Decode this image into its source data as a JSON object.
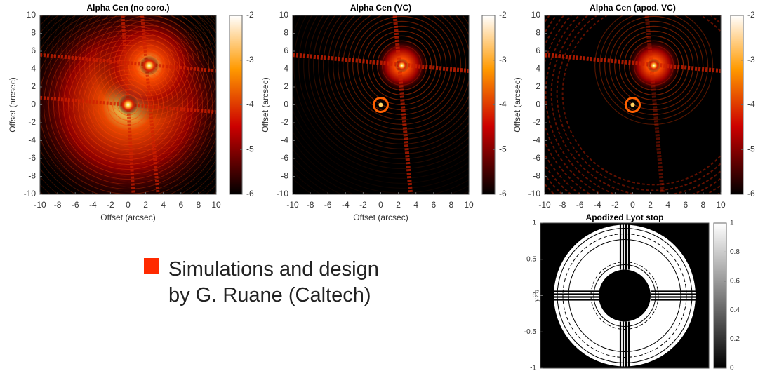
{
  "panels": [
    {
      "title": "Alpha Cen (no coro.)",
      "xlabel": "Offset (arcsec)",
      "ylabel": "Offset (arcsec)",
      "xlim": [
        -10,
        10
      ],
      "ylim": [
        -10,
        10
      ],
      "xticks": [
        -10,
        -8,
        -6,
        -4,
        -2,
        0,
        2,
        4,
        6,
        8,
        10
      ],
      "yticks": [
        -10,
        -8,
        -6,
        -4,
        -2,
        0,
        2,
        4,
        6,
        8,
        10
      ],
      "clim": [
        -6,
        -2
      ],
      "cticks": [
        -2,
        -3,
        -4,
        -5,
        -6
      ]
    },
    {
      "title": "Alpha Cen (VC)",
      "xlabel": "Offset (arcsec)",
      "ylabel": "Offset (arcsec)",
      "xlim": [
        -10,
        10
      ],
      "ylim": [
        -10,
        10
      ],
      "xticks": [
        -10,
        -8,
        -6,
        -4,
        -2,
        0,
        2,
        4,
        6,
        8,
        10
      ],
      "yticks": [
        -10,
        -8,
        -6,
        -4,
        -2,
        0,
        2,
        4,
        6,
        8,
        10
      ],
      "clim": [
        -6,
        -2
      ],
      "cticks": [
        -2,
        -3,
        -4,
        -5,
        -6
      ]
    },
    {
      "title": "Alpha Cen (apod. VC)",
      "ylabel": "Offset (arcsec)",
      "xlim": [
        -10,
        10
      ],
      "ylim": [
        -10,
        10
      ],
      "xticks": [
        -10,
        -8,
        -6,
        -4,
        -2,
        0,
        2,
        4,
        6,
        8,
        10
      ],
      "yticks": [
        -10,
        -8,
        -6,
        -4,
        -2,
        0,
        2,
        4,
        6,
        8,
        10
      ],
      "clim": [
        -6,
        -2
      ],
      "cticks": [
        -2,
        -3,
        -4,
        -5,
        -6
      ]
    }
  ],
  "lyot": {
    "title": "Apodized Lyot stop",
    "ylabel": "y / a",
    "ylim": [
      -1,
      1
    ],
    "yticks": [
      1,
      0.5,
      0,
      -0.5,
      -1
    ],
    "clim": [
      0,
      1
    ],
    "cticks": [
      1,
      0.8,
      0.6,
      0.4,
      0.2,
      0
    ]
  },
  "bullet": [
    "Simulations and design",
    "by G. Ruane (Caltech)"
  ]
}
